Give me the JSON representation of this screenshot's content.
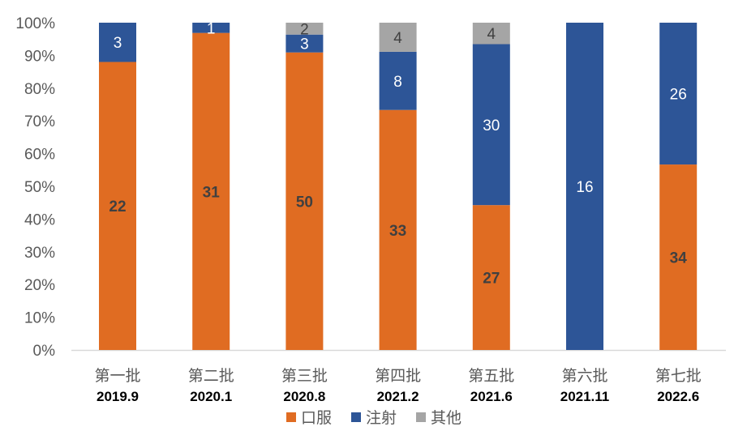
{
  "chart_data": {
    "type": "bar",
    "stacked": "percent",
    "categories": [
      "第一批",
      "第二批",
      "第三批",
      "第四批",
      "第五批",
      "第六批",
      "第七批"
    ],
    "dates": [
      "2019.9",
      "2020.1",
      "2020.8",
      "2021.2",
      "2021.6",
      "2021.11",
      "2022.6"
    ],
    "series": [
      {
        "name": "口服",
        "color": "#E06C22",
        "values": [
          22,
          31,
          50,
          33,
          27,
          0,
          34
        ]
      },
      {
        "name": "注射",
        "color": "#2D5597",
        "values": [
          3,
          1,
          3,
          8,
          30,
          16,
          26
        ]
      },
      {
        "name": "其他",
        "color": "#A5A5A5",
        "values": [
          0,
          0,
          2,
          4,
          4,
          0,
          0
        ]
      }
    ],
    "yticks": [
      "0%",
      "10%",
      "20%",
      "30%",
      "40%",
      "50%",
      "60%",
      "70%",
      "80%",
      "90%",
      "100%"
    ],
    "ylim": [
      0,
      100
    ],
    "legend": "bottom",
    "grid": false
  }
}
